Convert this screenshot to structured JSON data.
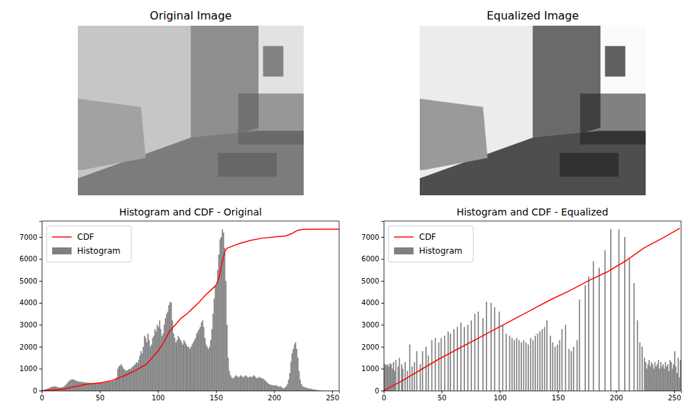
{
  "chart_data": [
    {
      "type": "image",
      "title": "Original Image",
      "tick_labels": false
    },
    {
      "type": "image",
      "title": "Equalized Image",
      "tick_labels": false
    },
    {
      "type": "histogram",
      "title": "Histogram and CDF - Original",
      "bins": [
        0,
        1,
        2,
        3,
        4,
        5,
        6,
        7,
        8,
        9,
        10,
        11,
        12,
        13,
        14,
        15,
        16,
        17,
        18,
        19,
        20,
        21,
        22,
        23,
        24,
        25,
        26,
        27,
        28,
        29,
        30,
        31,
        32,
        33,
        34,
        35,
        36,
        37,
        38,
        39,
        40,
        41,
        42,
        43,
        44,
        45,
        46,
        47,
        48,
        49,
        50,
        51,
        52,
        53,
        54,
        55,
        56,
        57,
        58,
        59,
        60,
        61,
        62,
        63,
        64,
        65,
        66,
        67,
        68,
        69,
        70,
        71,
        72,
        73,
        74,
        75,
        76,
        77,
        78,
        79,
        80,
        81,
        82,
        83,
        84,
        85,
        86,
        87,
        88,
        89,
        90,
        91,
        92,
        93,
        94,
        95,
        96,
        97,
        98,
        99,
        100,
        101,
        102,
        103,
        104,
        105,
        106,
        107,
        108,
        109,
        110,
        111,
        112,
        113,
        114,
        115,
        116,
        117,
        118,
        119,
        120,
        121,
        122,
        123,
        124,
        125,
        126,
        127,
        128,
        129,
        130,
        131,
        132,
        133,
        134,
        135,
        136,
        137,
        138,
        139,
        140,
        141,
        142,
        143,
        144,
        145,
        146,
        147,
        148,
        149,
        150,
        151,
        152,
        153,
        154,
        155,
        156,
        157,
        158,
        159,
        160,
        161,
        162,
        163,
        164,
        165,
        166,
        167,
        168,
        169,
        170,
        171,
        172,
        173,
        174,
        175,
        176,
        177,
        178,
        179,
        180,
        181,
        182,
        183,
        184,
        185,
        186,
        187,
        188,
        189,
        190,
        191,
        192,
        193,
        194,
        195,
        196,
        197,
        198,
        199,
        200,
        201,
        202,
        203,
        204,
        205,
        206,
        207,
        208,
        209,
        210,
        211,
        212,
        213,
        214,
        215,
        216,
        217,
        218,
        219,
        220,
        221,
        222,
        223,
        224,
        225,
        226,
        227,
        228,
        229,
        230,
        231,
        232,
        233,
        234,
        235,
        236,
        237,
        238,
        239,
        240,
        241,
        242,
        243,
        244,
        245,
        246,
        247,
        248,
        249,
        250,
        251,
        252,
        253,
        254,
        255,
        256
      ],
      "series": [
        {
          "name": "CDF",
          "type": "line",
          "color": "red",
          "x": [
            0,
            10,
            20,
            30,
            40,
            50,
            60,
            65,
            70,
            80,
            90,
            95,
            100,
            105,
            110,
            115,
            120,
            125,
            130,
            135,
            140,
            145,
            150,
            153,
            155,
            158,
            160,
            165,
            170,
            180,
            190,
            200,
            210,
            215,
            220,
            225,
            240,
            256
          ],
          "values": [
            0,
            30,
            80,
            200,
            300,
            350,
            450,
            550,
            650,
            900,
            1200,
            1500,
            1800,
            2200,
            2700,
            3000,
            3300,
            3500,
            3750,
            4000,
            4300,
            4550,
            4800,
            5200,
            5800,
            6400,
            6500,
            6600,
            6700,
            6850,
            6950,
            7000,
            7050,
            7150,
            7300,
            7350,
            7360,
            7360
          ]
        },
        {
          "name": "Histogram",
          "type": "bar",
          "color": "gray",
          "values": [
            10,
            20,
            40,
            60,
            80,
            100,
            120,
            150,
            170,
            180,
            200,
            190,
            180,
            160,
            150,
            140,
            130,
            150,
            170,
            200,
            250,
            300,
            380,
            430,
            480,
            500,
            520,
            510,
            480,
            450,
            430,
            420,
            410,
            400,
            400,
            390,
            380,
            370,
            370,
            360,
            350,
            350,
            340,
            340,
            330,
            340,
            350,
            360,
            370,
            380,
            370,
            360,
            350,
            360,
            370,
            380,
            390,
            400,
            410,
            420,
            430,
            440,
            460,
            500,
            600,
            1000,
            1100,
            1150,
            1200,
            1100,
            1000,
            950,
            900,
            920,
            950,
            1000,
            980,
            1050,
            1100,
            1150,
            1200,
            1300,
            1250,
            1400,
            1600,
            1800,
            1700,
            2000,
            2500,
            2400,
            2200,
            2600,
            2300,
            2000,
            2100,
            2400,
            2500,
            2800,
            2700,
            3000,
            2900,
            3200,
            2800,
            2500,
            2600,
            3000,
            3300,
            3500,
            3600,
            3900,
            4050,
            4000,
            3200,
            2600,
            2400,
            2200,
            2300,
            2500,
            2400,
            2300,
            2200,
            2100,
            2300,
            2200,
            2100,
            2000,
            2000,
            1900,
            2000,
            2100,
            2200,
            2300,
            2400,
            2600,
            2700,
            2800,
            2900,
            3100,
            3200,
            2900,
            2400,
            2100,
            2000,
            1900,
            2000,
            2300,
            2800,
            3500,
            4200,
            4800,
            4800,
            5500,
            6200,
            6900,
            7000,
            7350,
            7200,
            6500,
            5000,
            3000,
            1500,
            900,
            700,
            600,
            550,
            600,
            650,
            700,
            650,
            600,
            650,
            700,
            650,
            600,
            650,
            700,
            650,
            600,
            620,
            650,
            600,
            650,
            700,
            650,
            600,
            550,
            600,
            620,
            580,
            560,
            550,
            500,
            450,
            400,
            350,
            300,
            280,
            260,
            250,
            240,
            230,
            250,
            220,
            200,
            180,
            200,
            150,
            120,
            100,
            150,
            200,
            300,
            500,
            800,
            1300,
            1700,
            1900,
            2100,
            2200,
            1900,
            1500,
            900,
            500,
            300,
            200,
            180,
            150,
            130,
            120,
            100,
            90,
            80,
            70,
            60,
            50,
            40,
            30,
            25,
            20,
            15,
            10,
            8,
            6,
            5,
            4,
            3,
            2,
            2,
            1,
            1,
            1,
            0,
            0,
            0,
            0,
            0
          ]
        }
      ],
      "xlim": [
        0,
        256
      ],
      "ylim": [
        0,
        7730
      ],
      "xticks": [
        0,
        50,
        100,
        150,
        200,
        250
      ],
      "yticks": [
        0,
        1000,
        2000,
        3000,
        4000,
        5000,
        6000,
        7000
      ],
      "legend": "upper left"
    },
    {
      "type": "histogram",
      "title": "Histogram and CDF - Equalized",
      "bins": [
        0,
        1,
        2,
        3,
        4,
        5,
        6,
        7,
        8,
        9,
        10,
        11,
        12,
        13,
        14,
        15,
        16,
        17,
        18,
        19,
        20,
        21,
        22,
        23,
        24,
        25,
        26,
        27,
        28,
        29,
        30,
        31,
        32,
        33,
        34,
        35,
        36,
        37,
        38,
        39,
        40,
        41,
        42,
        43,
        44,
        45,
        46,
        47,
        48,
        49,
        50,
        51,
        52,
        53,
        54,
        55,
        56,
        57,
        58,
        59,
        60,
        61,
        62,
        63,
        64,
        65,
        66,
        67,
        68,
        69,
        70,
        71,
        72,
        73,
        74,
        75,
        76,
        77,
        78,
        79,
        80,
        81,
        82,
        83,
        84,
        85,
        86,
        87,
        88,
        89,
        90,
        91,
        92,
        93,
        94,
        95,
        96,
        97,
        98,
        99,
        100,
        101,
        102,
        103,
        104,
        105,
        106,
        107,
        108,
        109,
        110,
        111,
        112,
        113,
        114,
        115,
        116,
        117,
        118,
        119,
        120,
        121,
        122,
        123,
        124,
        125,
        126,
        127,
        128,
        129,
        130,
        131,
        132,
        133,
        134,
        135,
        136,
        137,
        138,
        139,
        140,
        141,
        142,
        143,
        144,
        145,
        146,
        147,
        148,
        149,
        150,
        151,
        152,
        153,
        154,
        155,
        156,
        157,
        158,
        159,
        160,
        161,
        162,
        163,
        164,
        165,
        166,
        167,
        168,
        169,
        170,
        171,
        172,
        173,
        174,
        175,
        176,
        177,
        178,
        179,
        180,
        181,
        182,
        183,
        184,
        185,
        186,
        187,
        188,
        189,
        190,
        191,
        192,
        193,
        194,
        195,
        196,
        197,
        198,
        199,
        200,
        201,
        202,
        203,
        204,
        205,
        206,
        207,
        208,
        209,
        210,
        211,
        212,
        213,
        214,
        215,
        216,
        217,
        218,
        219,
        220,
        221,
        222,
        223,
        224,
        225,
        226,
        227,
        228,
        229,
        230,
        231,
        232,
        233,
        234,
        235,
        236,
        237,
        238,
        239,
        240,
        241,
        242,
        243,
        244,
        245,
        246,
        247,
        248,
        249,
        250,
        251,
        252,
        253,
        254,
        255,
        256
      ],
      "series": [
        {
          "name": "CDF",
          "type": "line",
          "color": "red",
          "x": [
            0,
            16,
            32,
            48,
            64,
            80,
            96,
            112,
            128,
            144,
            160,
            176,
            192,
            208,
            224,
            240,
            255
          ],
          "values": [
            0,
            450,
            950,
            1450,
            1900,
            2350,
            2800,
            3250,
            3700,
            4150,
            4550,
            5000,
            5400,
            5900,
            6500,
            6950,
            7400
          ]
        },
        {
          "name": "Histogram",
          "type": "bar",
          "color": "gray",
          "values": [
            1200,
            1200,
            1150,
            1200,
            1100,
            1250,
            1200,
            1000,
            1300,
            900,
            1400,
            0,
            1100,
            1500,
            0,
            1200,
            1000,
            0,
            1300,
            0,
            900,
            0,
            2100,
            0,
            1100,
            0,
            1300,
            0,
            1800,
            0,
            0,
            1200,
            0,
            1800,
            0,
            0,
            2000,
            0,
            1600,
            0,
            0,
            2300,
            0,
            0,
            2400,
            0,
            0,
            2200,
            0,
            2400,
            0,
            0,
            2500,
            0,
            0,
            2700,
            0,
            2600,
            0,
            0,
            2800,
            0,
            0,
            2900,
            0,
            0,
            3100,
            0,
            0,
            2900,
            0,
            0,
            3000,
            0,
            0,
            3200,
            0,
            0,
            3500,
            0,
            0,
            3600,
            0,
            0,
            0,
            3300,
            0,
            0,
            4050,
            0,
            0,
            0,
            4000,
            0,
            0,
            3800,
            0,
            0,
            0,
            3600,
            0,
            0,
            3000,
            0,
            0,
            2600,
            0,
            0,
            2500,
            0,
            2400,
            0,
            2300,
            0,
            2400,
            0,
            2300,
            0,
            2200,
            0,
            2300,
            0,
            2200,
            0,
            2100,
            0,
            2400,
            0,
            2300,
            0,
            2500,
            0,
            2600,
            0,
            2700,
            0,
            2800,
            0,
            2900,
            0,
            3200,
            0,
            0,
            2500,
            0,
            2200,
            0,
            2000,
            0,
            2100,
            0,
            2300,
            0,
            2800,
            0,
            0,
            3000,
            0,
            0,
            1900,
            0,
            1800,
            0,
            2000,
            0,
            0,
            2300,
            0,
            4150,
            0,
            0,
            0,
            0,
            4800,
            0,
            0,
            5200,
            0,
            0,
            0,
            5900,
            0,
            0,
            0,
            0,
            5600,
            0,
            0,
            0,
            0,
            6400,
            0,
            0,
            0,
            0,
            7350,
            0,
            0,
            0,
            0,
            0,
            0,
            7350,
            0,
            0,
            0,
            0,
            7000,
            0,
            0,
            0,
            6000,
            0,
            0,
            0,
            4900,
            0,
            0,
            3200,
            0,
            2200,
            0,
            2000,
            0,
            1500,
            1300,
            1000,
            1200,
            1400,
            1100,
            1300,
            1200,
            1000,
            1300,
            1100,
            1200,
            1400,
            1000,
            1300,
            1100,
            1200,
            1000,
            1300,
            1100,
            1200,
            900,
            1400,
            1300,
            1000,
            1200,
            1800,
            1100,
            800,
            1500,
            600,
            1400
          ]
        }
      ],
      "xlim": [
        0,
        256
      ],
      "ylim": [
        0,
        7730
      ],
      "xticks": [
        0,
        50,
        100,
        150,
        200,
        250
      ],
      "yticks": [
        0,
        1000,
        2000,
        3000,
        4000,
        5000,
        6000,
        7000
      ],
      "legend": "upper left"
    }
  ]
}
